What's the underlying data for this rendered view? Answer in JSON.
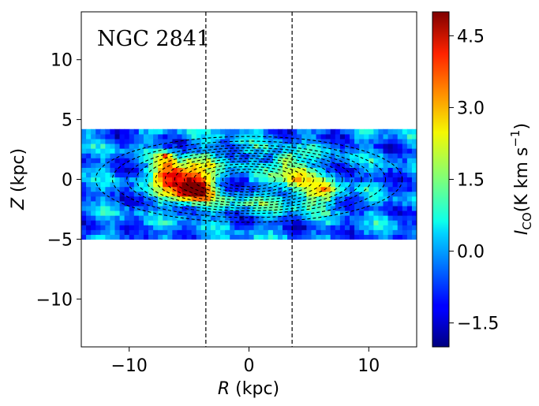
{
  "chart_data": {
    "type": "heatmap",
    "title": "NGC 2841",
    "xlabel": "R (kpc)",
    "xlabel_var": "R",
    "xlabel_unit": "(kpc)",
    "ylabel": "Z (kpc)",
    "ylabel_var": "Z",
    "ylabel_unit": "(kpc)",
    "xlim": [
      -14,
      14
    ],
    "ylim": [
      -14,
      14
    ],
    "xticks": [
      -10,
      0,
      10
    ],
    "xtick_labels": [
      "−10",
      "0",
      "10"
    ],
    "yticks": [
      -10,
      -5,
      0,
      5,
      10
    ],
    "ytick_labels": [
      "−10",
      "−5",
      "0",
      "5",
      "10"
    ],
    "data_extent": {
      "r": [
        -14,
        14
      ],
      "z": [
        -5,
        4
      ]
    },
    "vertical_lines_r": [
      -3.6,
      3.6
    ],
    "colorbar": {
      "label": "I_CO (K km s^-1)",
      "label_var": "I",
      "label_sub": "CO",
      "label_unit_pre": "(K km s",
      "label_unit_sup": "−1",
      "label_unit_post": ")",
      "colormap": "jet",
      "range": [
        -2.0,
        5.0
      ],
      "ticks": [
        -1.5,
        0.0,
        1.5,
        3.0,
        4.5
      ],
      "tick_labels": [
        "−1.5",
        "0.0",
        "1.5",
        "3.0",
        "4.5"
      ]
    },
    "contours": {
      "center": [
        0,
        0
      ],
      "semi_major_axes_kpc": [
        2.2,
        3.0,
        3.8,
        4.6,
        5.4,
        6.2,
        7.0,
        7.8,
        8.6,
        9.4,
        10.2,
        11.4,
        12.8
      ],
      "axis_ratio": 0.28,
      "style": "dashed"
    },
    "emission_blobs": [
      {
        "r": -5.2,
        "z": -0.2,
        "sr": 1.4,
        "sz": 1.1,
        "amp": 4.8
      },
      {
        "r": -6.8,
        "z": 0.6,
        "sr": 0.9,
        "sz": 0.8,
        "amp": 2.8
      },
      {
        "r": -4.4,
        "z": -0.8,
        "sr": 0.8,
        "sz": 0.6,
        "amp": 3.0
      },
      {
        "r": -6.9,
        "z": 2.0,
        "sr": 0.4,
        "sz": 0.3,
        "amp": 2.5
      },
      {
        "r": 3.8,
        "z": 0.4,
        "sr": 1.1,
        "sz": 0.9,
        "amp": 3.0
      },
      {
        "r": 3.0,
        "z": 1.6,
        "sr": 0.5,
        "sz": 0.4,
        "amp": 2.6
      },
      {
        "r": 6.6,
        "z": -0.8,
        "sr": 0.9,
        "sz": 0.7,
        "amp": 2.0
      },
      {
        "r": 5.0,
        "z": -1.4,
        "sr": 1.2,
        "sz": 0.6,
        "amp": 1.2
      },
      {
        "r": -2.0,
        "z": 1.4,
        "sr": 1.6,
        "sz": 0.5,
        "amp": 0.9
      },
      {
        "r": 0.0,
        "z": -2.0,
        "sr": 4.0,
        "sz": 0.6,
        "amp": 0.9
      },
      {
        "r": -1.0,
        "z": 2.5,
        "sr": 3.0,
        "sz": 0.5,
        "amp": 0.5
      }
    ],
    "background_level": -0.3
  }
}
